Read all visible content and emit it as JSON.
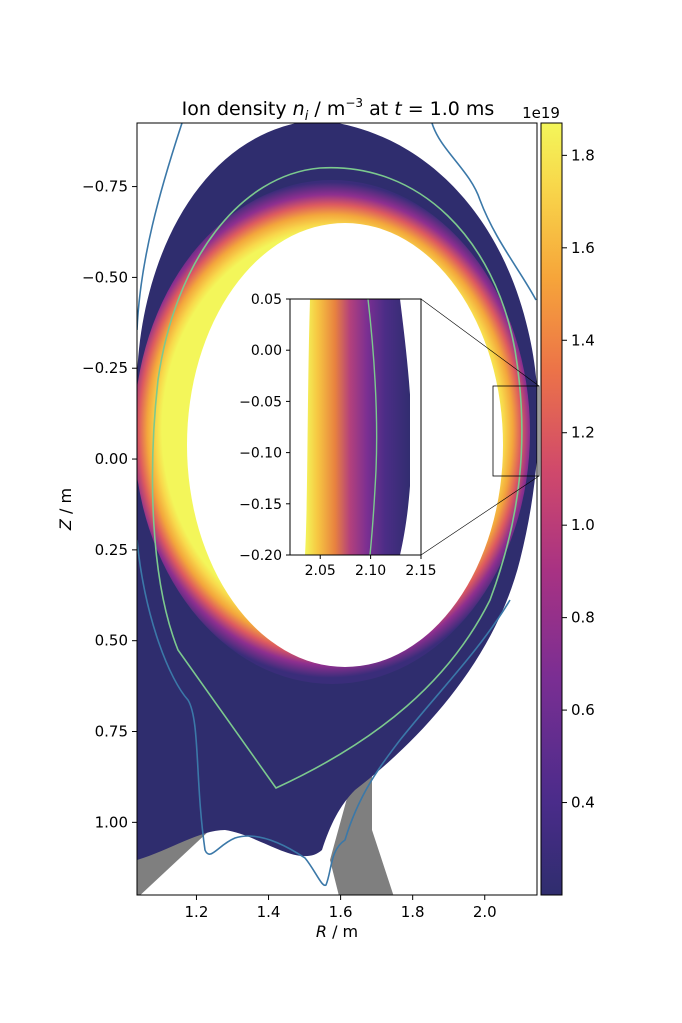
{
  "chart_data": [
    {
      "type": "heatmap",
      "title": "Ion density n_i / m^-3 at t = 1.0 ms",
      "title_parts": {
        "pre": "Ion density ",
        "sym": "n",
        "sub": "i",
        "unit": " / m",
        "exp": "−3",
        "mid": " at ",
        "tsym": "t",
        "post": " = 1.0 ms"
      },
      "xlabel": "R / m",
      "xlabel_parts": {
        "sym": "R",
        "unit": " / m"
      },
      "ylabel": "Z / m",
      "ylabel_parts": {
        "sym": "Z",
        "unit": " / m"
      },
      "xlim": [
        1.035,
        2.145
      ],
      "ylim": [
        -0.925,
        1.2
      ],
      "y_inverted": true,
      "x_ticks": [
        "1.2",
        "1.4",
        "1.6",
        "1.8",
        "2.0"
      ],
      "x_tick_values": [
        1.2,
        1.4,
        1.6,
        1.8,
        2.0
      ],
      "y_ticks": [
        "−0.75",
        "−0.50",
        "−0.25",
        "0.00",
        "0.25",
        "0.50",
        "0.75",
        "1.00"
      ],
      "y_tick_values": [
        -0.75,
        -0.5,
        -0.25,
        0.0,
        0.25,
        0.5,
        0.75,
        1.0
      ],
      "colorbar": {
        "label_offset": "1e19",
        "range": [
          0.2,
          1.87
        ],
        "ticks": [
          "0.4",
          "0.6",
          "0.8",
          "1.0",
          "1.2",
          "1.4",
          "1.6",
          "1.8"
        ],
        "tick_values": [
          0.4,
          0.6,
          0.8,
          1.0,
          1.2,
          1.4,
          1.6,
          1.8
        ],
        "colormap": "plasma",
        "colors": [
          "#2f2d6e",
          "#4a2c8a",
          "#7a2e93",
          "#a83283",
          "#d0496b",
          "#ec7348",
          "#f6a53a",
          "#f8d84b",
          "#f3f65a"
        ]
      },
      "curves": {
        "wall": "#3b78a8",
        "separatrix": "#7cc98e",
        "divertor_fill": "#7f7f7f",
        "inset_box": "#000000"
      }
    },
    {
      "type": "heatmap",
      "name": "inset",
      "xlim": [
        2.02,
        2.15
      ],
      "ylim": [
        -0.2,
        0.05
      ],
      "y_inverted": false,
      "x_ticks": [
        "2.05",
        "2.10",
        "2.15"
      ],
      "x_tick_values": [
        2.05,
        2.1,
        2.15
      ],
      "y_ticks": [
        "0.05",
        "0.00",
        "−0.05",
        "−0.10",
        "−0.15",
        "−0.20"
      ],
      "y_tick_values": [
        0.05,
        0.0,
        -0.05,
        -0.1,
        -0.15,
        -0.2
      ]
    }
  ]
}
